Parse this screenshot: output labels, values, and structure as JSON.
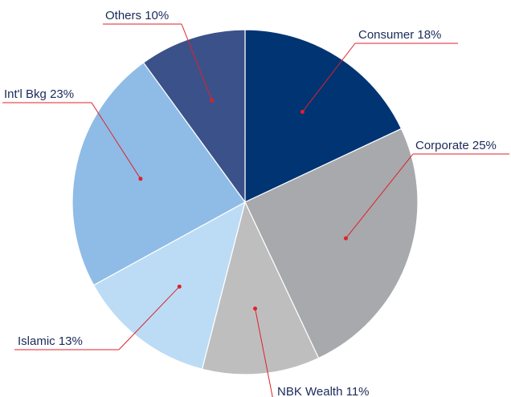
{
  "chart_data": {
    "type": "pie",
    "categories": [
      "Consumer",
      "Corporate",
      "NBK Wealth",
      "Islamic",
      "Int'l Bkg",
      "Others"
    ],
    "values": [
      18,
      25,
      11,
      13,
      23,
      10
    ],
    "value_labels": [
      "18%",
      "25%",
      "11%",
      "13%",
      "23%",
      "10%"
    ],
    "colors": [
      "#003473",
      "#a7a9ac",
      "#bebebf",
      "#bcdcf5",
      "#8fbce6",
      "#3b5189"
    ],
    "leader_color": "#e0202a"
  }
}
